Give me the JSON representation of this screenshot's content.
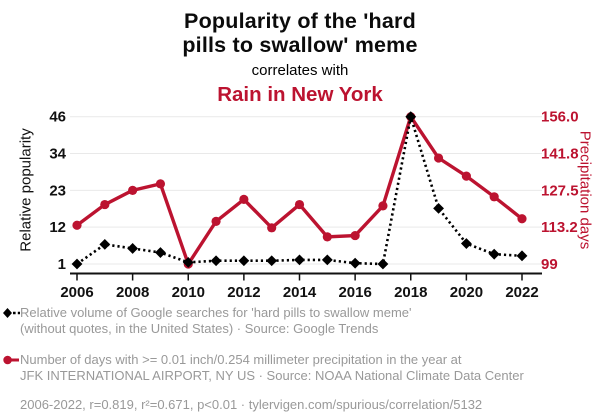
{
  "header": {
    "title_line1": "Popularity of the 'hard",
    "title_line2": "pills to swallow' meme",
    "subtitle": "correlates with",
    "correlate": "Rain in New York"
  },
  "colors": {
    "accent_red": "#bc1330",
    "text_black": "#0b0b0b",
    "legend_gray": "#999999",
    "gridline": "#e9e9e9"
  },
  "chart_data": {
    "type": "line",
    "title": "Popularity of the 'hard pills to swallow' meme correlates with Rain in New York",
    "x": [
      2006,
      2007,
      2008,
      2009,
      2010,
      2011,
      2012,
      2013,
      2014,
      2015,
      2016,
      2017,
      2018,
      2019,
      2020,
      2021,
      2022
    ],
    "x_tick_labels": [
      "2006",
      "2008",
      "2010",
      "2012",
      "2014",
      "2016",
      "2018",
      "2020",
      "2022"
    ],
    "series": [
      {
        "id": "meme-searches",
        "name": "Relative volume of Google searches for 'hard pills to swallow meme'",
        "axis": "left",
        "color": "#000000",
        "line_style": "dotted",
        "marker": "diamond",
        "values": [
          1,
          7,
          5.75,
          4.5,
          1.5,
          2,
          2,
          2,
          2.25,
          2.25,
          1.25,
          1,
          46,
          18,
          7.25,
          4,
          3.5
        ]
      },
      {
        "id": "jfk-precipitation",
        "name": "Number of days with >= 0.01 inch/0.254 millimeter precipitation in the year at JFK INTERNATIONAL AIRPORT, NY US",
        "axis": "right",
        "color": "#bc1330",
        "line_style": "solid",
        "marker": "circle",
        "values": [
          114,
          122,
          127.5,
          130,
          99,
          115.5,
          124,
          113,
          122,
          109.5,
          110,
          121.5,
          156,
          140,
          133,
          125,
          116.5
        ]
      }
    ],
    "left_axis": {
      "title": "Relative popularity",
      "tick_labels": [
        "1",
        "12",
        "23",
        "34",
        "46"
      ],
      "min": 1,
      "max": 46,
      "color": "#111111"
    },
    "right_axis": {
      "title": "Precipitation days",
      "tick_labels": [
        "99",
        "113.2",
        "127.5",
        "141.8",
        "156.0"
      ],
      "min": 99,
      "max": 156,
      "color": "#bc1330"
    },
    "grid": "horizontal",
    "legend_position": "bottom"
  },
  "legend": {
    "items": [
      {
        "marker": "black-diamond-dotted",
        "color": "#000000",
        "lines": [
          "Relative volume of Google searches for 'hard pills to swallow meme'",
          "(without quotes, in the United States) · Source: Google Trends"
        ]
      },
      {
        "marker": "red-circle-solid",
        "color": "#bc1330",
        "lines": [
          "Number of days with >= 0.01 inch/0.254 millimeter precipitation in the year at",
          "JFK INTERNATIONAL AIRPORT, NY US · Source: NOAA National Climate Data Center"
        ]
      }
    ]
  },
  "footer": "2006-2022, r=0.819, r²=0.671, p<0.01 · tylervigen.com/spurious/correlation/5132"
}
